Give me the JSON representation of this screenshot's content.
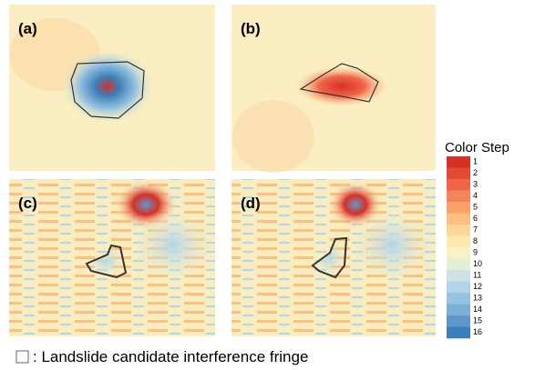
{
  "panels": [
    {
      "label": "(a)"
    },
    {
      "label": "(b)"
    },
    {
      "label": "(c)"
    },
    {
      "label": "(d)"
    }
  ],
  "legend": {
    "title": "Color Step",
    "steps": [
      {
        "label": 1,
        "color": "#d73027"
      },
      {
        "label": 2,
        "color": "#e34a33"
      },
      {
        "label": 3,
        "color": "#ef6548"
      },
      {
        "label": 4,
        "color": "#f4845a"
      },
      {
        "label": 5,
        "color": "#f9a36b"
      },
      {
        "label": 6,
        "color": "#fdbf7f"
      },
      {
        "label": 7,
        "color": "#fed699"
      },
      {
        "label": 8,
        "color": "#fee9b0"
      },
      {
        "label": 9,
        "color": "#f6f2c6"
      },
      {
        "label": 10,
        "color": "#e3eed6"
      },
      {
        "label": 11,
        "color": "#cce2e4"
      },
      {
        "label": 12,
        "color": "#b2d5e8"
      },
      {
        "label": 13,
        "color": "#97c3e0"
      },
      {
        "label": 14,
        "color": "#7bafd6"
      },
      {
        "label": 15,
        "color": "#5f98c8"
      },
      {
        "label": 16,
        "color": "#3b7fb9"
      }
    ]
  },
  "caption": {
    "text": ": Landslide candidate interference fringe"
  }
}
